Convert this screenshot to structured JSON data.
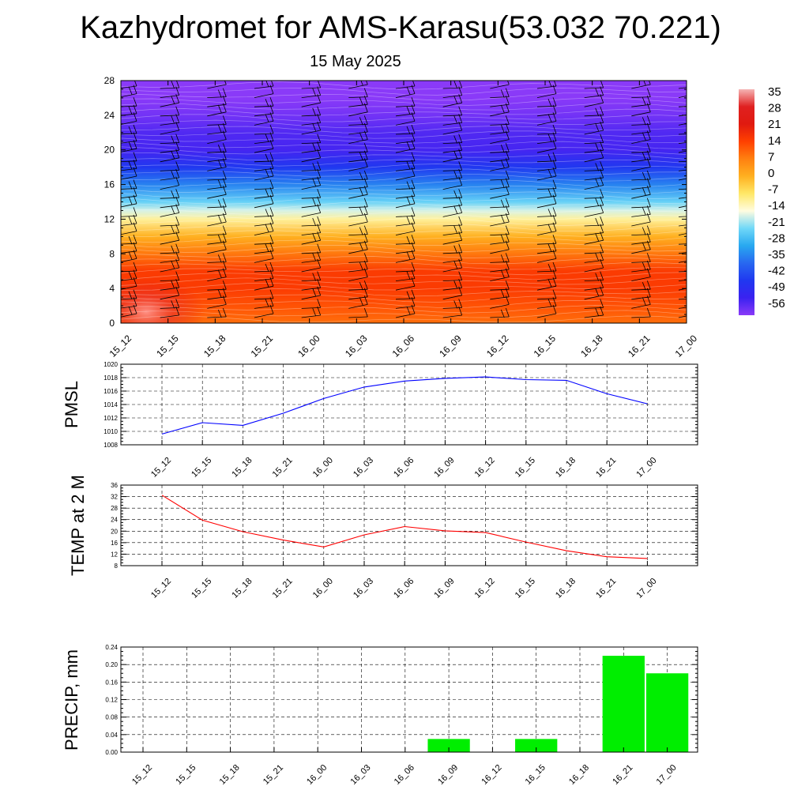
{
  "header": {
    "title": "Kazhydromet for AMS-Karasu(53.032 70.221)",
    "date": "15 May 2025"
  },
  "colors": {
    "pmsl_line": "#0000ff",
    "temp_line": "#ff0000",
    "precip_bar": "#00ee00",
    "wind_barb": "#000000",
    "grid": "#000000"
  },
  "time_labels": [
    "15_12",
    "15_15",
    "15_18",
    "15_21",
    "16_00",
    "16_03",
    "16_06",
    "16_09",
    "16_12",
    "16_15",
    "16_18",
    "16_21",
    "17_00"
  ],
  "chart_data": [
    {
      "type": "heatmap",
      "name": "upper-air-temperature",
      "categories": [
        "15_12",
        "15_15",
        "15_18",
        "15_21",
        "16_00",
        "16_03",
        "16_06",
        "16_09",
        "16_12",
        "16_15",
        "16_18",
        "16_21",
        "17_00"
      ],
      "yticks": [
        0,
        4,
        8,
        12,
        16,
        20,
        24,
        28
      ],
      "ylim": [
        0,
        28
      ],
      "colorbar": {
        "labels": [
          "35",
          "28",
          "21",
          "14",
          "7",
          "0",
          "-7",
          "-14",
          "-21",
          "-28",
          "-35",
          "-42",
          "-49",
          "-56"
        ],
        "stops": [
          {
            "v": 35,
            "c": "#f5b4b4"
          },
          {
            "v": 28,
            "c": "#e02020"
          },
          {
            "v": 21,
            "c": "#e01a10"
          },
          {
            "v": 14,
            "c": "#ff4000"
          },
          {
            "v": 7,
            "c": "#ff8010"
          },
          {
            "v": 0,
            "c": "#ffb020"
          },
          {
            "v": -7,
            "c": "#ffe868"
          },
          {
            "v": -14,
            "c": "#fffce0"
          },
          {
            "v": -21,
            "c": "#70d8f8"
          },
          {
            "v": -28,
            "c": "#28a8f0"
          },
          {
            "v": -35,
            "c": "#2868f0"
          },
          {
            "v": -42,
            "c": "#2038f0"
          },
          {
            "v": -49,
            "c": "#3a22f0"
          },
          {
            "v": -56,
            "c": "#8a3af8"
          }
        ]
      },
      "profile": [
        {
          "h": 0,
          "t": 9
        },
        {
          "h": 2,
          "t": 12
        },
        {
          "h": 4,
          "t": 15
        },
        {
          "h": 6,
          "t": 15
        },
        {
          "h": 8,
          "t": 8
        },
        {
          "h": 10,
          "t": 0
        },
        {
          "h": 12,
          "t": -10
        },
        {
          "h": 13,
          "t": -16
        },
        {
          "h": 14,
          "t": -22
        },
        {
          "h": 16,
          "t": -32
        },
        {
          "h": 18,
          "t": -42
        },
        {
          "h": 20,
          "t": -50
        },
        {
          "h": 22,
          "t": -51
        },
        {
          "h": 24,
          "t": -54
        },
        {
          "h": 26,
          "t": -57
        },
        {
          "h": 28,
          "t": -58
        }
      ]
    },
    {
      "type": "line",
      "name": "PMSL",
      "ylabel": "PMSL",
      "categories": [
        "15_12",
        "15_15",
        "15_18",
        "15_21",
        "16_00",
        "16_03",
        "16_06",
        "16_09",
        "16_12",
        "16_15",
        "16_18",
        "16_21",
        "17_00"
      ],
      "values": [
        1009.6,
        1011.3,
        1010.9,
        1012.7,
        1014.9,
        1016.6,
        1017.5,
        1017.9,
        1018.1,
        1017.7,
        1017.6,
        1015.6,
        1014.1
      ],
      "ylim": [
        1008,
        1020
      ],
      "yticks": [
        1008,
        1010,
        1012,
        1014,
        1016,
        1018,
        1020
      ]
    },
    {
      "type": "line",
      "name": "TEMP at 2 M",
      "ylabel": "TEMP at 2 M",
      "categories": [
        "15_12",
        "15_15",
        "15_18",
        "15_21",
        "16_00",
        "16_03",
        "16_06",
        "16_09",
        "16_12",
        "16_15",
        "16_18",
        "16_21",
        "17_00"
      ],
      "values": [
        32.5,
        23.8,
        19.8,
        16.9,
        14.5,
        18.7,
        21.6,
        20.1,
        19.5,
        16.2,
        13.2,
        11.1,
        10.5
      ],
      "ylim": [
        8,
        36
      ],
      "yticks": [
        8,
        12,
        16,
        20,
        24,
        28,
        32,
        36
      ]
    },
    {
      "type": "bar",
      "name": "PRECIP, mm",
      "ylabel": "PRECIP, mm",
      "categories": [
        "15_12",
        "15_15",
        "15_18",
        "15_21",
        "16_00",
        "16_03",
        "16_06",
        "16_09",
        "16_12",
        "16_15",
        "16_18",
        "16_21",
        "17_00"
      ],
      "values": [
        0,
        0,
        0,
        0,
        0,
        0,
        0,
        0.03,
        0,
        0.03,
        0,
        0.22,
        0.18
      ],
      "ylim": [
        0,
        0.24
      ],
      "yticks": [
        "0.00",
        "0.04",
        "0.08",
        "0.12",
        "0.16",
        "0.20",
        "0.24"
      ]
    }
  ]
}
